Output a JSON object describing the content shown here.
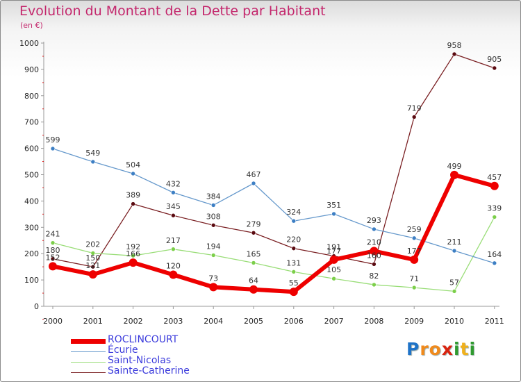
{
  "chart_data": {
    "type": "line",
    "title": "Evolution du Montant de la Dette par Habitant",
    "subtitle": "(en €)",
    "x": [
      "2000",
      "2001",
      "2002",
      "2003",
      "2004",
      "2005",
      "2006",
      "2007",
      "2008",
      "2009",
      "2010",
      "2011"
    ],
    "ylim": [
      0,
      1000
    ],
    "yticks": [
      0,
      100,
      200,
      300,
      400,
      500,
      600,
      700,
      800,
      900,
      1000
    ],
    "grid": false,
    "legend_position": "bottom-left",
    "series": [
      {
        "name": "Sainte-Catherine",
        "color": "#7a1f22",
        "point_color": "#5a0a10",
        "width": 1.3,
        "r": 3,
        "values": [
          180,
          150,
          389,
          345,
          308,
          279,
          220,
          191,
          160,
          719,
          958,
          905
        ],
        "labels": [
          "180",
          "150",
          "389",
          "345",
          "308",
          "279",
          "220",
          "191",
          "160",
          "719",
          "958",
          "905"
        ]
      },
      {
        "name": "Saint-Nicolas",
        "color": "#99dd77",
        "point_color": "#7ccf4a",
        "width": 1.3,
        "r": 3,
        "values": [
          241,
          202,
          192,
          217,
          194,
          165,
          131,
          105,
          82,
          71,
          57,
          339
        ],
        "labels": [
          "241",
          "202",
          "192",
          "217",
          "194",
          "165",
          "131",
          "105",
          "82",
          "71",
          "57",
          "339"
        ]
      },
      {
        "name": "Écurie",
        "color": "#6699cc",
        "point_color": "#3d7fc4",
        "width": 1.3,
        "r": 3,
        "values": [
          599,
          549,
          504,
          432,
          384,
          467,
          324,
          351,
          293,
          259,
          211,
          164
        ],
        "labels": [
          "599",
          "549",
          "504",
          "432",
          "384",
          "467",
          "324",
          "351",
          "293",
          "259",
          "211",
          "164"
        ]
      },
      {
        "name": "ROCLINCOURT",
        "color": "#ee0000",
        "point_color": "#ee0000",
        "width": 6,
        "r": 6,
        "values": [
          152,
          121,
          166,
          120,
          73,
          64,
          55,
          177,
          210,
          177,
          499,
          457
        ],
        "labels": [
          "152",
          "121",
          "166",
          "120",
          "73",
          "64",
          "55",
          "177",
          "210",
          "177",
          "499",
          "457"
        ]
      }
    ]
  },
  "legend": [
    {
      "name": "ROCLINCOURT",
      "color": "#ee0000",
      "height": 7
    },
    {
      "name": "Écurie",
      "color": "#6699cc",
      "height": 1
    },
    {
      "name": "Saint-Nicolas",
      "color": "#99dd77",
      "height": 1
    },
    {
      "name": "Sainte-Catherine",
      "color": "#7a1f22",
      "height": 1
    }
  ],
  "logo": {
    "letters": [
      {
        "ch": "P",
        "color": "#1f73c8"
      },
      {
        "ch": "r",
        "color": "#f08a1c"
      },
      {
        "ch": "o",
        "color": "#f08a1c"
      },
      {
        "ch": "x",
        "color": "#d9230f"
      },
      {
        "ch": "i",
        "color": "#2f9a2f"
      },
      {
        "ch": "t",
        "color": "#f0b01c"
      },
      {
        "ch": "i",
        "color": "#2f9a2f"
      }
    ]
  }
}
